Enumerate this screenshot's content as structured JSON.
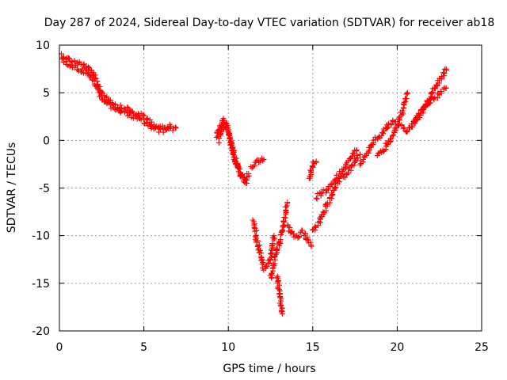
{
  "chart_data": {
    "type": "scatter",
    "title": "Day 287 of 2024, Sidereal Day-to-day VTEC variation (SDTVAR) for receiver ab18",
    "xlabel": "GPS time / hours",
    "ylabel": "SDTVAR / TECUs",
    "xlim": [
      0,
      25
    ],
    "ylim": [
      -20,
      10
    ],
    "xticks": [
      0,
      5,
      10,
      15,
      20,
      25
    ],
    "yticks": [
      -20,
      -15,
      -10,
      -5,
      0,
      5,
      10
    ],
    "grid": true,
    "marker": "+",
    "color": "#ff0000",
    "series": [
      {
        "name": "SDTVAR",
        "segments": [
          {
            "x": [
              0.1,
              0.5,
              1.0,
              1.5,
              2.0,
              2.5,
              3.0,
              3.5,
              4.0,
              4.5,
              5.0,
              5.5,
              6.0,
              6.5,
              6.9
            ],
            "y": [
              9.0,
              8.5,
              8.2,
              7.8,
              7.0,
              5.0,
              4.2,
              3.5,
              3.3,
              2.8,
              2.5,
              1.8,
              1.3,
              1.2,
              1.3
            ]
          },
          {
            "x": [
              0.2,
              0.6,
              1.1,
              1.6,
              2.1,
              2.6,
              3.1,
              3.6,
              4.1,
              4.6,
              5.1,
              5.6,
              6.1,
              6.6
            ],
            "y": [
              8.5,
              8.0,
              7.5,
              7.2,
              6.0,
              4.2,
              3.6,
              3.0,
              2.8,
              2.3,
              1.9,
              1.2,
              1.0,
              1.5
            ]
          },
          {
            "x": [
              9.3,
              9.5,
              9.7,
              9.9,
              10.1,
              10.3,
              10.5,
              10.7,
              10.9,
              11.1
            ],
            "y": [
              0.5,
              1.5,
              2.2,
              1.5,
              0.0,
              -1.5,
              -2.5,
              -3.5,
              -4.0,
              -4.5
            ]
          },
          {
            "x": [
              9.4,
              9.6,
              9.8,
              10.0,
              10.2,
              10.4,
              10.6,
              10.8,
              11.0,
              11.2
            ],
            "y": [
              0.0,
              1.0,
              1.8,
              0.8,
              -0.5,
              -2.0,
              -3.0,
              -3.8,
              -4.2,
              -3.5
            ]
          },
          {
            "x": [
              11.3,
              11.6,
              11.9,
              12.1
            ],
            "y": [
              -2.8,
              -2.4,
              -2.1,
              -2.0
            ]
          },
          {
            "x": [
              11.5,
              11.7,
              11.9,
              12.1,
              12.3,
              12.5,
              12.7
            ],
            "y": [
              -8.5,
              -10.5,
              -12.0,
              -13.5,
              -13.2,
              -12.5,
              -10.0
            ]
          },
          {
            "x": [
              12.5,
              12.7,
              12.9,
              13.1,
              13.3,
              13.5
            ],
            "y": [
              -14.5,
              -13.0,
              -11.5,
              -10.0,
              -8.5,
              -6.5
            ]
          },
          {
            "x": [
              12.9,
              13.0,
              13.1,
              13.2
            ],
            "y": [
              -14.2,
              -15.5,
              -17.0,
              -18.2
            ]
          },
          {
            "x": [
              13.5,
              13.8,
              14.1,
              14.4,
              14.7,
              14.9
            ],
            "y": [
              -9.0,
              -9.8,
              -10.2,
              -9.5,
              -10.5,
              -11.0
            ]
          },
          {
            "x": [
              14.8,
              15.0,
              15.2
            ],
            "y": [
              -4.0,
              -2.5,
              -2.2
            ]
          },
          {
            "x": [
              15.0,
              15.4,
              15.8,
              16.2,
              16.6,
              17.0,
              17.4,
              17.8
            ],
            "y": [
              -9.5,
              -8.5,
              -7.0,
              -5.5,
              -4.0,
              -3.5,
              -2.5,
              -1.5
            ]
          },
          {
            "x": [
              15.2,
              15.6,
              16.0,
              16.4,
              16.8,
              17.2,
              17.6
            ],
            "y": [
              -6.0,
              -5.5,
              -5.0,
              -4.0,
              -3.0,
              -2.0,
              -1.0
            ]
          },
          {
            "x": [
              17.8,
              18.2,
              18.6,
              19.0,
              19.4,
              19.8,
              20.2,
              20.6
            ],
            "y": [
              -2.5,
              -1.5,
              0.0,
              0.5,
              1.5,
              2.0,
              1.5,
              1.0
            ]
          },
          {
            "x": [
              18.8,
              19.2,
              19.6,
              20.0,
              20.4,
              20.6
            ],
            "y": [
              -1.5,
              -1.0,
              0.0,
              1.5,
              3.5,
              5.0
            ]
          },
          {
            "x": [
              20.6,
              21.0,
              21.4,
              21.8,
              22.2,
              22.6,
              22.9
            ],
            "y": [
              1.0,
              1.8,
              3.0,
              4.0,
              4.5,
              5.0,
              5.5
            ]
          },
          {
            "x": [
              21.0,
              21.4,
              21.8,
              22.2,
              22.6,
              22.9
            ],
            "y": [
              2.0,
              2.8,
              4.0,
              5.5,
              6.5,
              7.5
            ]
          }
        ]
      }
    ]
  }
}
